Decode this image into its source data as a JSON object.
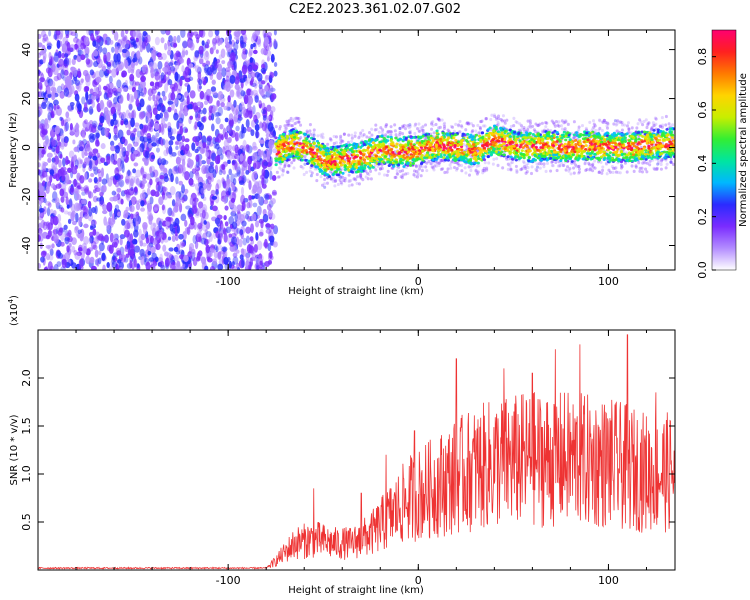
{
  "title": "C2E2.2023.361.02.07.G02",
  "chart_data": [
    {
      "type": "heatmap",
      "xlabel": "Height of straight line (km)",
      "ylabel": "Frequency (Hz)",
      "xlim": [
        -200,
        135
      ],
      "ylim": [
        -50,
        48
      ],
      "x_ticks": [
        -100,
        0,
        100
      ],
      "y_ticks": [
        -40,
        -20,
        0,
        20,
        40
      ],
      "colorbar": {
        "label": "Normalized spectral amplitude",
        "range": [
          0,
          0.9
        ],
        "ticks": [
          0.0,
          0.2,
          0.4,
          0.6,
          0.8
        ],
        "colors": [
          "#ffffff",
          "#b38cff",
          "#7a2cff",
          "#2b2bff",
          "#00b7ff",
          "#00e5a0",
          "#33ee33",
          "#c8ee00",
          "#ffd400",
          "#ff7a00",
          "#ff2020",
          "#ff0070"
        ]
      },
      "noise_region_x": [
        -200,
        -75
      ],
      "ridge": [
        {
          "x": -75,
          "y": -2
        },
        {
          "x": -65,
          "y": 2
        },
        {
          "x": -55,
          "y": -2
        },
        {
          "x": -48,
          "y": -6
        },
        {
          "x": -40,
          "y": -5
        },
        {
          "x": -30,
          "y": -4
        },
        {
          "x": -20,
          "y": -1
        },
        {
          "x": -10,
          "y": -2
        },
        {
          "x": 0,
          "y": -1
        },
        {
          "x": 10,
          "y": 1
        },
        {
          "x": 20,
          "y": 0
        },
        {
          "x": 30,
          "y": -1
        },
        {
          "x": 40,
          "y": 3
        },
        {
          "x": 50,
          "y": 1
        },
        {
          "x": 60,
          "y": 0
        },
        {
          "x": 70,
          "y": 1
        },
        {
          "x": 80,
          "y": 0
        },
        {
          "x": 90,
          "y": 1
        },
        {
          "x": 100,
          "y": 0
        },
        {
          "x": 110,
          "y": 0
        },
        {
          "x": 120,
          "y": 1
        },
        {
          "x": 135,
          "y": 2
        }
      ]
    },
    {
      "type": "line",
      "xlabel": "Height of straight line (km)",
      "ylabel": "SNR (10 * v/v)",
      "y_multiplier": "(x10",
      "y_multiplier_exp": "4",
      "y_multiplier_close": ")",
      "xlim": [
        -200,
        135
      ],
      "ylim": [
        0,
        2.5
      ],
      "x_ticks": [
        -100,
        0,
        100
      ],
      "y_ticks": [
        "0.5",
        "1.0",
        "1.5",
        "2.0"
      ],
      "color": "#ee3333",
      "envelope": [
        {
          "x": -200,
          "y": 0.02
        },
        {
          "x": -80,
          "y": 0.02
        },
        {
          "x": -75,
          "y": 0.1
        },
        {
          "x": -65,
          "y": 0.3
        },
        {
          "x": -55,
          "y": 0.35
        },
        {
          "x": -45,
          "y": 0.3
        },
        {
          "x": -35,
          "y": 0.3
        },
        {
          "x": -25,
          "y": 0.4
        },
        {
          "x": -15,
          "y": 0.6
        },
        {
          "x": -5,
          "y": 0.8
        },
        {
          "x": 5,
          "y": 0.9
        },
        {
          "x": 15,
          "y": 1.0
        },
        {
          "x": 25,
          "y": 1.1
        },
        {
          "x": 40,
          "y": 1.2
        },
        {
          "x": 60,
          "y": 1.25
        },
        {
          "x": 80,
          "y": 1.25
        },
        {
          "x": 100,
          "y": 1.2
        },
        {
          "x": 120,
          "y": 1.1
        },
        {
          "x": 135,
          "y": 1.1
        }
      ],
      "peaks": [
        {
          "x": -55,
          "y": 0.85
        },
        {
          "x": -30,
          "y": 0.8
        },
        {
          "x": -17,
          "y": 1.2
        },
        {
          "x": -2,
          "y": 1.45
        },
        {
          "x": 20,
          "y": 2.2
        },
        {
          "x": 45,
          "y": 2.1
        },
        {
          "x": 60,
          "y": 2.05
        },
        {
          "x": 72,
          "y": 2.3
        },
        {
          "x": 85,
          "y": 2.35
        },
        {
          "x": 110,
          "y": 2.45
        },
        {
          "x": 125,
          "y": 1.85
        }
      ]
    }
  ]
}
